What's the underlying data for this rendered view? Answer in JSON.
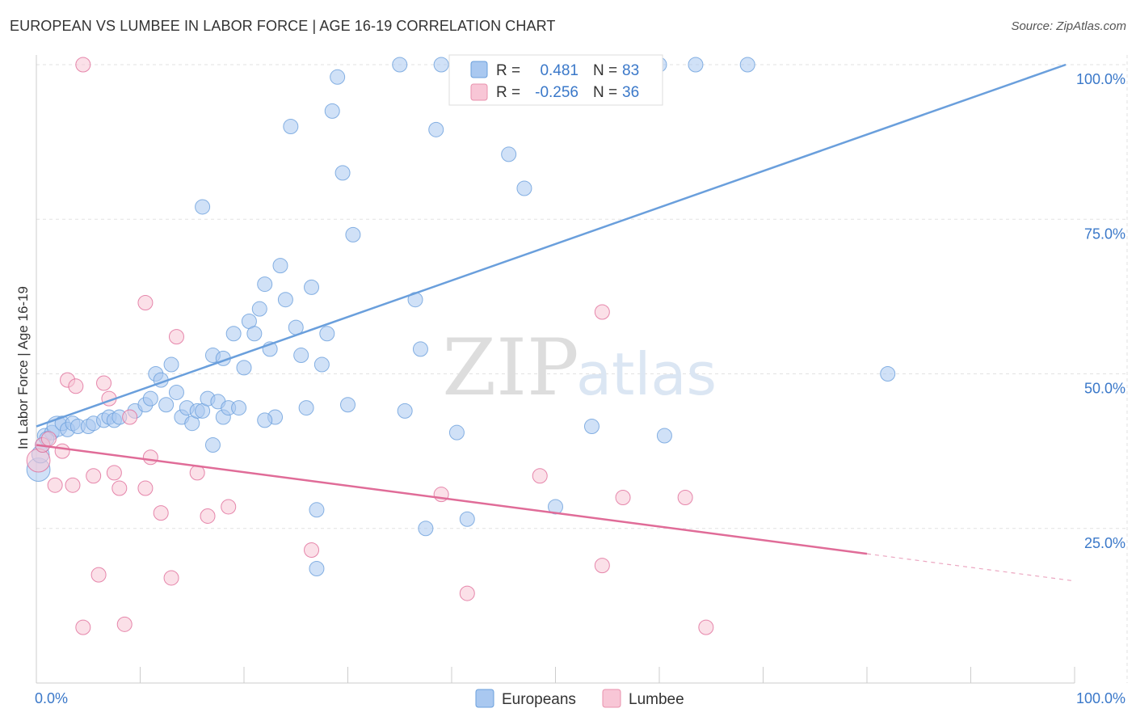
{
  "title": "EUROPEAN VS LUMBEE IN LABOR FORCE | AGE 16-19 CORRELATION CHART",
  "source": "Source: ZipAtlas.com",
  "watermark": {
    "zip": "ZIP",
    "atlas": "atlas"
  },
  "legend": {
    "r_label": "R =",
    "n_label": "N =",
    "entries": [
      {
        "r": "0.481",
        "n": "83",
        "color": "#a9c8f0",
        "border": "#6a9fdc"
      },
      {
        "r": "-0.256",
        "n": "36",
        "color": "#f8c6d6",
        "border": "#e892ad"
      }
    ]
  },
  "bottom_legend": [
    "Europeans",
    "Lumbee"
  ],
  "chart_data": {
    "type": "scatter",
    "title": "EUROPEAN VS LUMBEE IN LABOR FORCE | AGE 16-19 CORRELATION CHART",
    "xlabel": "",
    "ylabel": "In Labor Force | Age 16-19",
    "xlim": [
      0,
      100
    ],
    "ylim": [
      0,
      100
    ],
    "x_tick_labels": [
      "0.0%",
      "100.0%"
    ],
    "y_ticks": [
      25,
      50,
      75,
      100
    ],
    "y_tick_labels": [
      "25.0%",
      "50.0%",
      "75.0%",
      "100.0%"
    ],
    "grid": true,
    "legend_position": "top-center",
    "series": [
      {
        "name": "Europeans",
        "color": "#6a9fdc",
        "fill": "#a9c8f0",
        "r": 0.481,
        "n": 83,
        "trend": {
          "x0": 0,
          "y0": 41.5,
          "x1": 100,
          "y1": 100.5,
          "dashed_from": null
        },
        "points": [
          [
            0.2,
            34.5,
            1.6
          ],
          [
            0.4,
            37.0,
            1.2
          ],
          [
            0.8,
            40.0,
            1.0
          ],
          [
            1.5,
            40.5,
            1.0
          ],
          [
            2.0,
            41.5,
            1.4
          ],
          [
            2.5,
            42.0,
            1.0
          ],
          [
            3.0,
            41.0,
            1.0
          ],
          [
            3.5,
            42.0,
            1.0
          ],
          [
            4.0,
            41.5,
            1.0
          ],
          [
            5.0,
            41.5,
            1.0
          ],
          [
            5.5,
            42.0,
            1.0
          ],
          [
            6.5,
            42.5,
            1.0
          ],
          [
            7.0,
            43.0,
            1.0
          ],
          [
            7.5,
            42.5,
            1.0
          ],
          [
            8.0,
            43.0,
            1.0
          ],
          [
            9.5,
            44.0,
            1.0
          ],
          [
            10.5,
            45.0,
            1.0
          ],
          [
            11.0,
            46.0,
            1.0
          ],
          [
            11.5,
            50.0,
            1.0
          ],
          [
            12.0,
            49.0,
            1.0
          ],
          [
            12.5,
            45.0,
            1.0
          ],
          [
            13.0,
            51.5,
            1.0
          ],
          [
            13.5,
            47.0,
            1.0
          ],
          [
            14.0,
            43.0,
            1.0
          ],
          [
            14.5,
            44.5,
            1.0
          ],
          [
            15.0,
            42.0,
            1.0
          ],
          [
            15.5,
            44.0,
            1.0
          ],
          [
            16.0,
            44.0,
            1.0
          ],
          [
            16.5,
            46.0,
            1.0
          ],
          [
            17.0,
            38.5,
            1.0
          ],
          [
            17.5,
            45.5,
            1.0
          ],
          [
            18.0,
            43.0,
            1.0
          ],
          [
            18.5,
            44.5,
            1.0
          ],
          [
            16.0,
            77.0,
            1.0
          ],
          [
            17.0,
            53.0,
            1.0
          ],
          [
            18.0,
            52.5,
            1.0
          ],
          [
            19.0,
            56.5,
            1.0
          ],
          [
            20.0,
            51.0,
            1.0
          ],
          [
            20.5,
            58.5,
            1.0
          ],
          [
            21.0,
            56.5,
            1.0
          ],
          [
            21.5,
            60.5,
            1.0
          ],
          [
            22.0,
            64.5,
            1.0
          ],
          [
            22.5,
            54.0,
            1.0
          ],
          [
            23.0,
            43.0,
            1.0
          ],
          [
            23.5,
            67.5,
            1.0
          ],
          [
            24.0,
            62.0,
            1.0
          ],
          [
            24.5,
            90.0,
            1.0
          ],
          [
            25.0,
            57.5,
            1.0
          ],
          [
            25.5,
            53.0,
            1.0
          ],
          [
            26.0,
            44.5,
            1.0
          ],
          [
            26.5,
            64.0,
            1.0
          ],
          [
            27.0,
            18.5,
            1.0
          ],
          [
            27.5,
            51.5,
            1.0
          ],
          [
            28.0,
            56.5,
            1.0
          ],
          [
            28.5,
            92.5,
            1.0
          ],
          [
            29.0,
            98.0,
            1.0
          ],
          [
            29.5,
            82.5,
            1.0
          ],
          [
            30.0,
            45.0,
            1.0
          ],
          [
            30.5,
            72.5,
            1.0
          ],
          [
            22.0,
            42.5,
            1.0
          ],
          [
            19.5,
            44.5,
            1.0
          ],
          [
            27.0,
            28.0,
            1.0
          ],
          [
            35.0,
            100.0,
            1.0
          ],
          [
            35.5,
            44.0,
            1.0
          ],
          [
            36.5,
            62.0,
            1.0
          ],
          [
            37.0,
            54.0,
            1.0
          ],
          [
            37.5,
            25.0,
            1.0
          ],
          [
            38.5,
            89.5,
            1.0
          ],
          [
            39.0,
            100.0,
            1.0
          ],
          [
            40.5,
            40.5,
            1.0
          ],
          [
            41.5,
            26.5,
            1.0
          ],
          [
            42.0,
            100.0,
            1.0
          ],
          [
            45.5,
            85.5,
            1.0
          ],
          [
            47.0,
            80.0,
            1.0
          ],
          [
            50.0,
            28.5,
            1.0
          ],
          [
            53.5,
            41.5,
            1.0
          ],
          [
            60.0,
            100.0,
            1.0
          ],
          [
            60.5,
            40.0,
            1.0
          ],
          [
            63.5,
            100.0,
            1.0
          ],
          [
            68.5,
            100.0,
            1.0
          ],
          [
            82.0,
            50.0,
            1.0
          ],
          [
            0.6,
            38.5,
            1.0
          ],
          [
            1.0,
            39.5,
            1.0
          ]
        ]
      },
      {
        "name": "Lumbee",
        "color": "#e06c98",
        "fill": "#f8c6d6",
        "r": -0.256,
        "n": 36,
        "trend": {
          "x0": 0,
          "y0": 38.5,
          "x1": 100,
          "y1": 16.5,
          "dashed_from": 80
        },
        "points": [
          [
            0.2,
            36.0,
            1.6
          ],
          [
            0.6,
            38.5,
            1.0
          ],
          [
            1.2,
            39.5,
            1.0
          ],
          [
            1.8,
            32.0,
            1.0
          ],
          [
            2.5,
            37.5,
            1.0
          ],
          [
            3.0,
            49.0,
            1.0
          ],
          [
            3.5,
            32.0,
            1.0
          ],
          [
            3.8,
            48.0,
            1.0
          ],
          [
            4.5,
            100.0,
            1.0
          ],
          [
            4.5,
            9.0,
            1.0
          ],
          [
            5.5,
            33.5,
            1.0
          ],
          [
            6.0,
            17.5,
            1.0
          ],
          [
            6.5,
            48.5,
            1.0
          ],
          [
            7.0,
            46.0,
            1.0
          ],
          [
            7.5,
            34.0,
            1.0
          ],
          [
            8.0,
            31.5,
            1.0
          ],
          [
            8.5,
            9.5,
            1.0
          ],
          [
            9.0,
            43.0,
            1.0
          ],
          [
            10.5,
            31.5,
            1.0
          ],
          [
            10.5,
            61.5,
            1.0
          ],
          [
            11.0,
            36.5,
            1.0
          ],
          [
            12.0,
            27.5,
            1.0
          ],
          [
            13.0,
            17.0,
            1.0
          ],
          [
            13.5,
            56.0,
            1.0
          ],
          [
            15.5,
            34.0,
            1.0
          ],
          [
            16.5,
            27.0,
            1.0
          ],
          [
            18.5,
            28.5,
            1.0
          ],
          [
            26.5,
            21.5,
            1.0
          ],
          [
            39.0,
            30.5,
            1.0
          ],
          [
            41.5,
            14.5,
            1.0
          ],
          [
            48.5,
            33.5,
            1.0
          ],
          [
            54.5,
            60.0,
            1.0
          ],
          [
            54.5,
            19.0,
            1.0
          ],
          [
            56.5,
            30.0,
            1.0
          ],
          [
            62.5,
            30.0,
            1.0
          ],
          [
            64.5,
            9.0,
            1.0
          ]
        ]
      }
    ]
  }
}
